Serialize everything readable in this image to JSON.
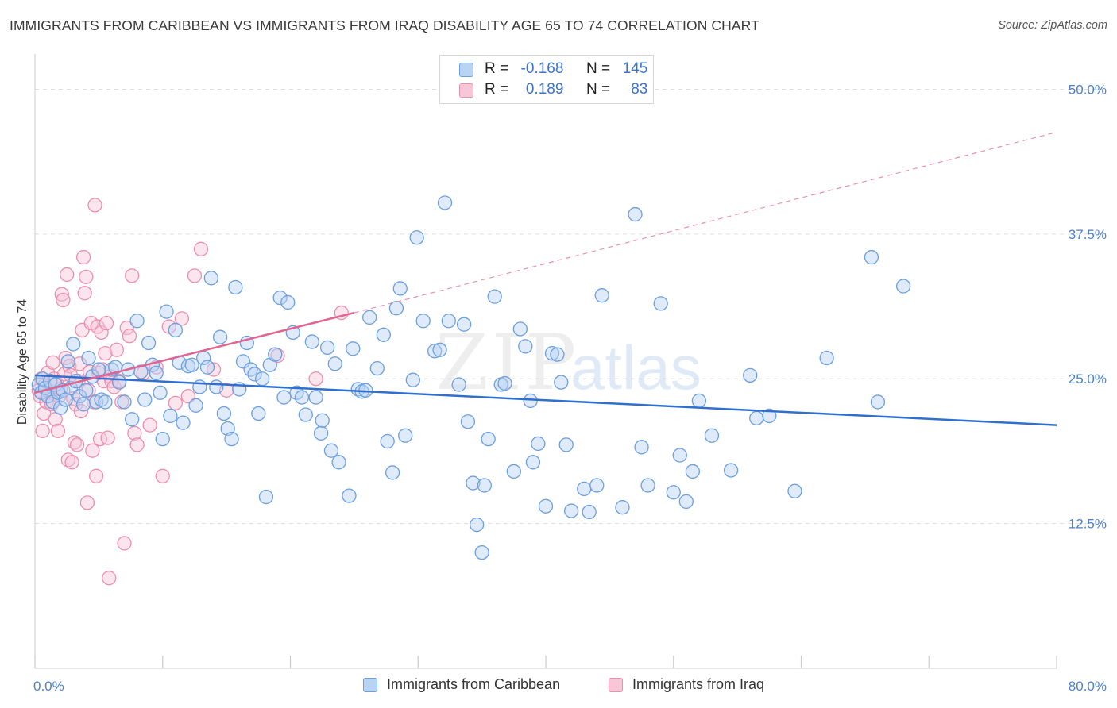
{
  "title": "IMMIGRANTS FROM CARIBBEAN VS IMMIGRANTS FROM IRAQ DISABILITY AGE 65 TO 74 CORRELATION CHART",
  "source": "Source: ZipAtlas.com",
  "watermark": {
    "zip": "ZIP",
    "atlas": "atlas"
  },
  "colors": {
    "blue_fill": "#b9d3f3",
    "blue_stroke": "#6b9fe0",
    "blue_line": "#2f6fcf",
    "pink_fill": "#f8c6d6",
    "pink_stroke": "#ec8fae",
    "pink_line": "#e0648f",
    "grid": "#dddddd",
    "tick_label": "#4a7fd0"
  },
  "legend_top": {
    "rows": [
      {
        "r_label": "R =",
        "r_value": "-0.168",
        "n_label": "N =",
        "n_value": "145"
      },
      {
        "r_label": "R =",
        "r_value": "0.189",
        "n_label": "N =",
        "n_value": "83"
      }
    ]
  },
  "legend_bottom": [
    "Immigrants from Caribbean",
    "Immigrants from Iraq"
  ],
  "chart_data": {
    "type": "scatter",
    "ylabel": "Disability Age 65 to 74",
    "xlim": [
      0,
      80
    ],
    "ylim": [
      0,
      52.5
    ],
    "x_tick_labels": [
      {
        "value": 0,
        "label": "0.0%"
      },
      {
        "value": 80,
        "label": "80.0%"
      }
    ],
    "y_tick_labels": [
      {
        "value": 12.5,
        "label": "12.5%"
      },
      {
        "value": 25,
        "label": "25.0%"
      },
      {
        "value": 37.5,
        "label": "37.5%"
      },
      {
        "value": 50,
        "label": "50.0%"
      }
    ],
    "grid": true,
    "legend_position": "top-center",
    "series": [
      {
        "name": "Immigrants from Caribbean",
        "color": "#6b9fe0",
        "trend": {
          "x": [
            0,
            80
          ],
          "y": [
            25.3,
            21.0
          ],
          "style": "solid"
        },
        "points": [
          [
            0.3,
            24.5
          ],
          [
            0.5,
            23.8
          ],
          [
            0.6,
            25.0
          ],
          [
            0.8,
            24.2
          ],
          [
            1.0,
            23.5
          ],
          [
            1.2,
            24.8
          ],
          [
            1.4,
            23.0
          ],
          [
            1.6,
            24.5
          ],
          [
            1.8,
            23.8
          ],
          [
            2.0,
            22.5
          ],
          [
            2.2,
            24.0
          ],
          [
            2.4,
            23.2
          ],
          [
            2.6,
            26.5
          ],
          [
            2.8,
            24.2
          ],
          [
            3.0,
            28.0
          ],
          [
            3.2,
            24.8
          ],
          [
            3.5,
            23.5
          ],
          [
            3.8,
            22.8
          ],
          [
            4.0,
            24.0
          ],
          [
            4.2,
            26.8
          ],
          [
            4.5,
            25.2
          ],
          [
            4.8,
            23.0
          ],
          [
            5.0,
            25.8
          ],
          [
            5.2,
            23.2
          ],
          [
            5.5,
            23.0
          ],
          [
            6.0,
            25.8
          ],
          [
            6.3,
            26.0
          ],
          [
            6.6,
            24.7
          ],
          [
            7.0,
            23.0
          ],
          [
            7.3,
            25.8
          ],
          [
            7.6,
            21.5
          ],
          [
            8.0,
            30.0
          ],
          [
            8.3,
            25.6
          ],
          [
            8.6,
            23.2
          ],
          [
            8.9,
            28.1
          ],
          [
            9.2,
            26.2
          ],
          [
            9.5,
            25.5
          ],
          [
            9.8,
            23.8
          ],
          [
            10.0,
            19.8
          ],
          [
            10.3,
            30.8
          ],
          [
            10.6,
            21.8
          ],
          [
            11.0,
            29.2
          ],
          [
            11.3,
            26.4
          ],
          [
            11.6,
            21.2
          ],
          [
            12.0,
            26.1
          ],
          [
            12.3,
            26.2
          ],
          [
            12.6,
            22.7
          ],
          [
            12.9,
            24.3
          ],
          [
            13.2,
            26.8
          ],
          [
            13.5,
            26.0
          ],
          [
            13.8,
            33.7
          ],
          [
            14.2,
            24.3
          ],
          [
            14.5,
            28.6
          ],
          [
            14.8,
            22.0
          ],
          [
            15.1,
            20.7
          ],
          [
            15.4,
            19.8
          ],
          [
            15.7,
            32.9
          ],
          [
            16.0,
            24.1
          ],
          [
            16.3,
            26.5
          ],
          [
            16.6,
            28.1
          ],
          [
            16.9,
            25.8
          ],
          [
            17.2,
            25.4
          ],
          [
            17.5,
            22.0
          ],
          [
            17.8,
            25.0
          ],
          [
            18.1,
            14.8
          ],
          [
            18.4,
            26.2
          ],
          [
            18.8,
            27.1
          ],
          [
            19.2,
            32.0
          ],
          [
            19.5,
            23.4
          ],
          [
            19.8,
            31.6
          ],
          [
            20.2,
            29.0
          ],
          [
            20.5,
            23.8
          ],
          [
            20.9,
            23.4
          ],
          [
            21.2,
            21.9
          ],
          [
            21.7,
            28.2
          ],
          [
            22.0,
            23.4
          ],
          [
            22.4,
            20.3
          ],
          [
            22.5,
            21.4
          ],
          [
            22.9,
            27.7
          ],
          [
            23.2,
            18.8
          ],
          [
            23.5,
            26.3
          ],
          [
            23.8,
            17.8
          ],
          [
            24.6,
            14.9
          ],
          [
            24.9,
            27.6
          ],
          [
            25.3,
            24.1
          ],
          [
            25.6,
            23.9
          ],
          [
            25.9,
            24.0
          ],
          [
            26.2,
            30.3
          ],
          [
            26.8,
            25.9
          ],
          [
            27.3,
            28.8
          ],
          [
            27.6,
            19.6
          ],
          [
            28.0,
            16.9
          ],
          [
            28.3,
            31.1
          ],
          [
            28.6,
            32.8
          ],
          [
            29.0,
            20.1
          ],
          [
            29.6,
            24.9
          ],
          [
            29.9,
            37.2
          ],
          [
            30.4,
            30.0
          ],
          [
            31.3,
            27.4
          ],
          [
            31.7,
            27.5
          ],
          [
            32.1,
            40.2
          ],
          [
            32.4,
            30.0
          ],
          [
            33.2,
            24.5
          ],
          [
            33.6,
            29.7
          ],
          [
            33.9,
            21.3
          ],
          [
            34.3,
            16.0
          ],
          [
            34.6,
            12.4
          ],
          [
            35.0,
            10.0
          ],
          [
            35.2,
            15.8
          ],
          [
            35.5,
            19.8
          ],
          [
            36.0,
            32.1
          ],
          [
            36.5,
            24.5
          ],
          [
            36.8,
            24.6
          ],
          [
            37.5,
            17.0
          ],
          [
            38.0,
            29.3
          ],
          [
            38.4,
            27.8
          ],
          [
            38.8,
            23.1
          ],
          [
            39.0,
            17.8
          ],
          [
            39.4,
            19.4
          ],
          [
            40.0,
            14.0
          ],
          [
            40.5,
            27.2
          ],
          [
            40.9,
            27.1
          ],
          [
            41.2,
            24.7
          ],
          [
            41.6,
            19.3
          ],
          [
            42.0,
            13.6
          ],
          [
            43.0,
            15.5
          ],
          [
            43.4,
            13.5
          ],
          [
            44.0,
            15.8
          ],
          [
            44.4,
            32.2
          ],
          [
            46.0,
            13.9
          ],
          [
            47.0,
            39.2
          ],
          [
            47.5,
            19.1
          ],
          [
            48.0,
            15.8
          ],
          [
            49.0,
            31.5
          ],
          [
            50.0,
            15.2
          ],
          [
            50.5,
            18.4
          ],
          [
            51.0,
            14.4
          ],
          [
            51.5,
            17.0
          ],
          [
            52.0,
            23.1
          ],
          [
            53.0,
            20.1
          ],
          [
            54.5,
            17.1
          ],
          [
            56.0,
            25.3
          ],
          [
            56.5,
            21.6
          ],
          [
            57.5,
            21.8
          ],
          [
            59.5,
            15.3
          ],
          [
            62.0,
            26.8
          ],
          [
            65.5,
            35.5
          ],
          [
            66.0,
            23.0
          ],
          [
            68.0,
            33.0
          ]
        ]
      },
      {
        "name": "Immigrants from Iraq",
        "color": "#ec8fae",
        "trend": {
          "x": [
            0,
            25
          ],
          "y": [
            23.8,
            30.7
          ],
          "style": "solid",
          "extended": {
            "x": [
              25,
              80
            ],
            "y": [
              30.7,
              46.3
            ],
            "style": "dashed"
          }
        },
        "points": [
          [
            0.3,
            24.0
          ],
          [
            0.4,
            23.5
          ],
          [
            0.5,
            25.0
          ],
          [
            0.6,
            20.5
          ],
          [
            0.7,
            22.0
          ],
          [
            0.8,
            24.5
          ],
          [
            0.9,
            23.0
          ],
          [
            1.0,
            25.5
          ],
          [
            1.1,
            24.0
          ],
          [
            1.2,
            23.8
          ],
          [
            1.3,
            22.8
          ],
          [
            1.4,
            26.4
          ],
          [
            1.5,
            25.0
          ],
          [
            1.6,
            21.5
          ],
          [
            1.7,
            24.6
          ],
          [
            1.8,
            20.5
          ],
          [
            1.9,
            23.5
          ],
          [
            2.0,
            24.1
          ],
          [
            2.1,
            32.3
          ],
          [
            2.2,
            31.8
          ],
          [
            2.3,
            25.4
          ],
          [
            2.4,
            26.8
          ],
          [
            2.5,
            34.0
          ],
          [
            2.6,
            18.0
          ],
          [
            2.7,
            26.1
          ],
          [
            2.8,
            25.3
          ],
          [
            2.9,
            17.8
          ],
          [
            3.0,
            23.3
          ],
          [
            3.1,
            19.5
          ],
          [
            3.2,
            22.8
          ],
          [
            3.3,
            19.3
          ],
          [
            3.4,
            24.8
          ],
          [
            3.5,
            26.3
          ],
          [
            3.6,
            22.2
          ],
          [
            3.7,
            29.2
          ],
          [
            3.8,
            35.5
          ],
          [
            3.9,
            32.4
          ],
          [
            4.0,
            33.8
          ],
          [
            4.1,
            14.3
          ],
          [
            4.2,
            24.0
          ],
          [
            4.3,
            25.6
          ],
          [
            4.4,
            29.8
          ],
          [
            4.5,
            18.8
          ],
          [
            4.6,
            23.0
          ],
          [
            4.7,
            40.0
          ],
          [
            4.8,
            16.6
          ],
          [
            4.9,
            29.5
          ],
          [
            5.0,
            25.5
          ],
          [
            5.1,
            19.8
          ],
          [
            5.2,
            29.0
          ],
          [
            5.3,
            25.8
          ],
          [
            5.4,
            24.8
          ],
          [
            5.5,
            27.2
          ],
          [
            5.6,
            29.8
          ],
          [
            5.7,
            19.9
          ],
          [
            5.8,
            7.8
          ],
          [
            5.9,
            25.2
          ],
          [
            6.0,
            24.8
          ],
          [
            6.2,
            24.3
          ],
          [
            6.4,
            27.5
          ],
          [
            6.6,
            24.8
          ],
          [
            6.8,
            23.0
          ],
          [
            7.0,
            10.8
          ],
          [
            7.2,
            29.4
          ],
          [
            7.4,
            28.7
          ],
          [
            7.6,
            33.9
          ],
          [
            7.8,
            20.3
          ],
          [
            8.0,
            19.3
          ],
          [
            8.5,
            25.5
          ],
          [
            9.0,
            21.0
          ],
          [
            9.5,
            26.0
          ],
          [
            10.0,
            16.6
          ],
          [
            10.5,
            29.5
          ],
          [
            11.0,
            22.9
          ],
          [
            11.5,
            30.2
          ],
          [
            12.0,
            23.5
          ],
          [
            12.5,
            33.9
          ],
          [
            13.0,
            36.2
          ],
          [
            14.0,
            25.8
          ],
          [
            15.0,
            24.0
          ],
          [
            19.0,
            27.0
          ],
          [
            22.0,
            25.0
          ],
          [
            24.0,
            30.7
          ]
        ]
      }
    ]
  }
}
